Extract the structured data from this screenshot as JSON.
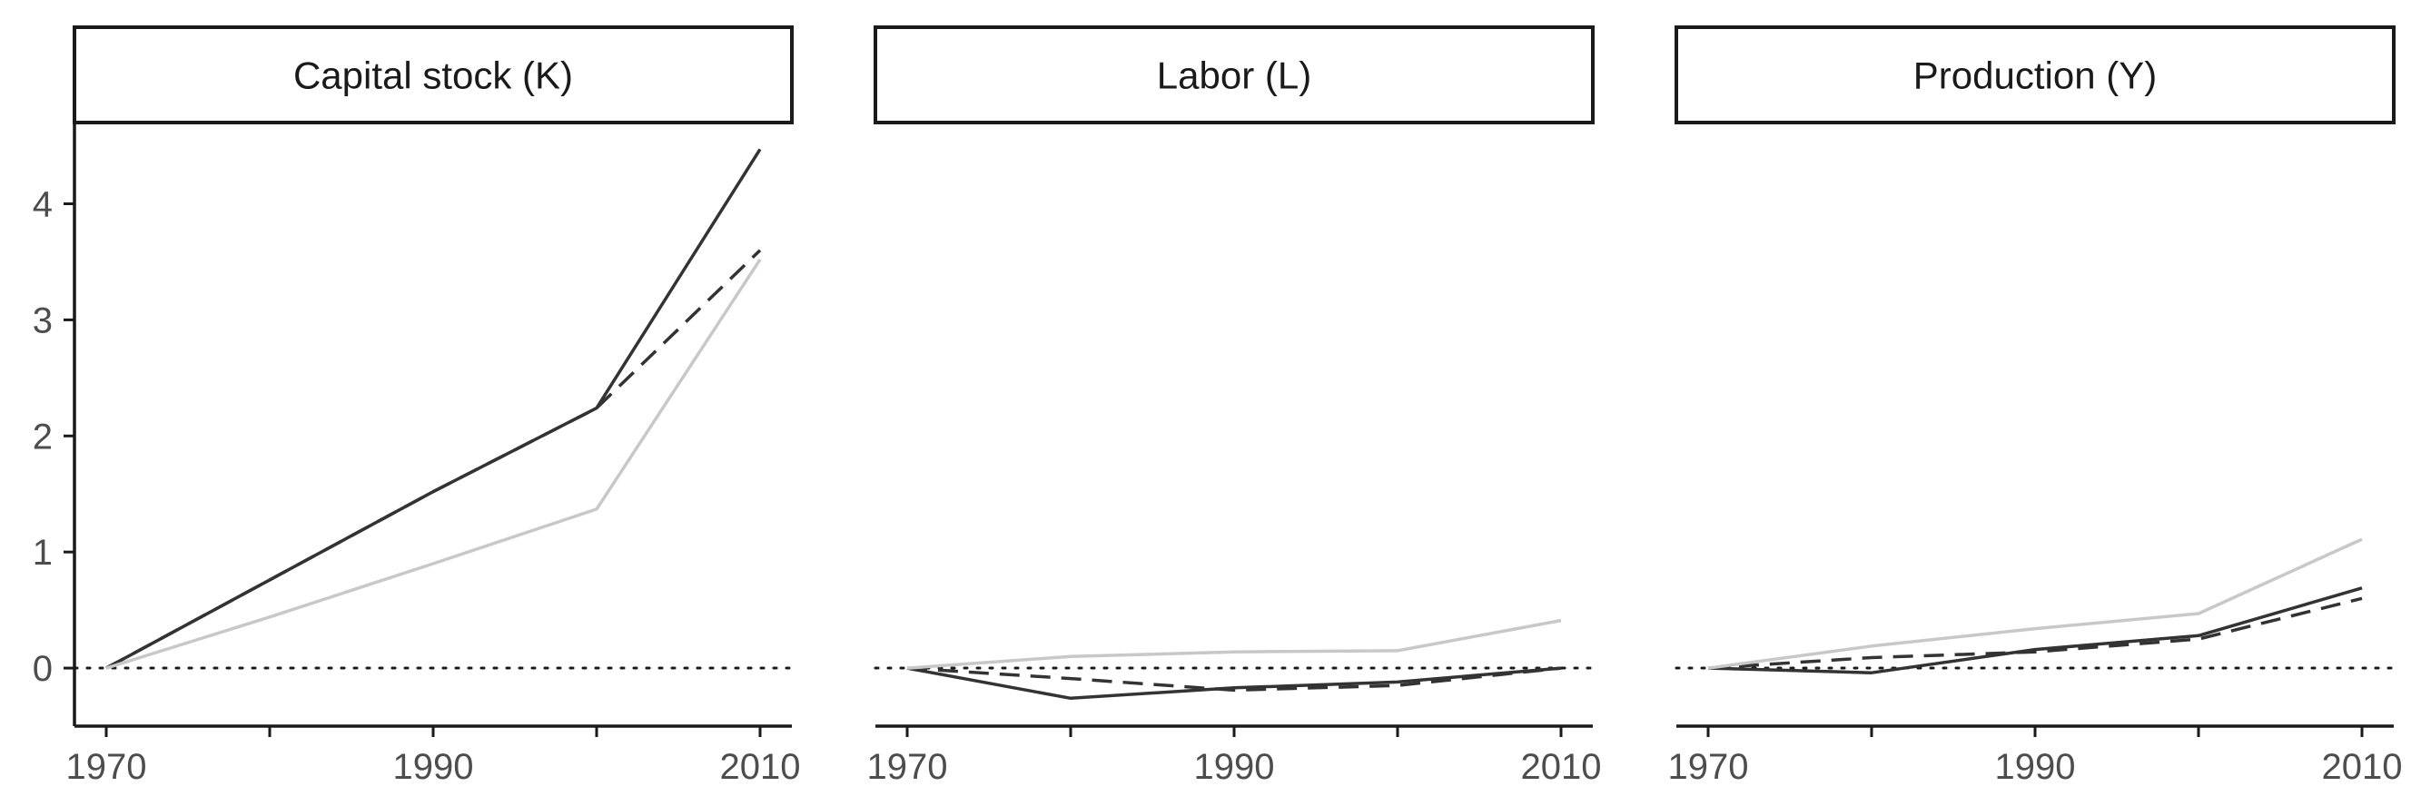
{
  "chart_data": [
    {
      "type": "line",
      "title": "Capital stock (K)",
      "x": [
        1970,
        1980,
        1990,
        2000,
        2010
      ],
      "xticks": [
        1970,
        1990,
        2010
      ],
      "xlim": [
        1970,
        2010
      ],
      "ylim": [
        -0.5,
        4.7
      ],
      "yticks": [
        0,
        1,
        2,
        3,
        4
      ],
      "reference_line": 0,
      "series": [
        {
          "style": "solid-dark",
          "color": "#333333",
          "values": [
            0,
            0.76,
            1.52,
            2.24,
            4.47
          ]
        },
        {
          "style": "dashed-dark",
          "color": "#333333",
          "values": [
            0,
            0.76,
            1.52,
            2.24,
            3.6
          ]
        },
        {
          "style": "solid-light",
          "color": "#c8c8c8",
          "values": [
            0,
            0.44,
            0.9,
            1.37,
            3.52
          ]
        }
      ]
    },
    {
      "type": "line",
      "title": "Labor (L)",
      "x": [
        1970,
        1980,
        1990,
        2000,
        2010
      ],
      "xticks": [
        1970,
        1990,
        2010
      ],
      "xlim": [
        1970,
        2010
      ],
      "ylim": [
        -0.5,
        4.7
      ],
      "yticks": [
        0,
        1,
        2,
        3,
        4
      ],
      "reference_line": 0,
      "series": [
        {
          "style": "solid-dark",
          "color": "#333333",
          "values": [
            0,
            -0.26,
            -0.17,
            -0.12,
            0
          ]
        },
        {
          "style": "dashed-dark",
          "color": "#333333",
          "values": [
            0,
            -0.09,
            -0.19,
            -0.15,
            0
          ]
        },
        {
          "style": "solid-light",
          "color": "#c8c8c8",
          "values": [
            0,
            0.1,
            0.14,
            0.15,
            0.41
          ]
        }
      ]
    },
    {
      "type": "line",
      "title": "Production (Y)",
      "x": [
        1970,
        1980,
        1990,
        2000,
        2010
      ],
      "xticks": [
        1970,
        1990,
        2010
      ],
      "xlim": [
        1970,
        2010
      ],
      "ylim": [
        -0.5,
        4.7
      ],
      "yticks": [
        0,
        1,
        2,
        3,
        4
      ],
      "reference_line": 0,
      "series": [
        {
          "style": "solid-dark",
          "color": "#333333",
          "values": [
            0,
            -0.04,
            0.16,
            0.28,
            0.69
          ]
        },
        {
          "style": "dashed-dark",
          "color": "#333333",
          "values": [
            0,
            0.09,
            0.14,
            0.25,
            0.6
          ]
        },
        {
          "style": "solid-light",
          "color": "#c8c8c8",
          "values": [
            0,
            0.19,
            0.34,
            0.47,
            1.11
          ]
        }
      ]
    }
  ]
}
